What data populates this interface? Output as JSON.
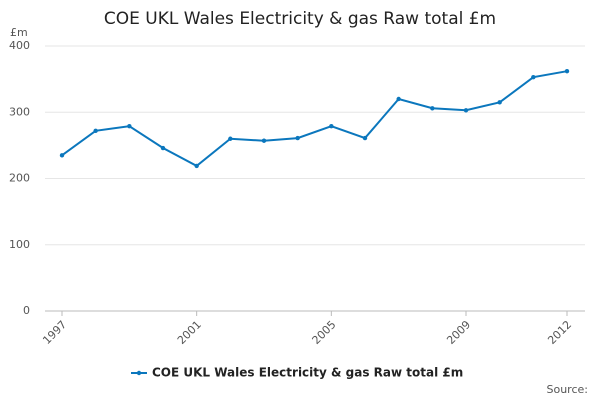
{
  "chart_data": {
    "type": "line",
    "title": "COE UKL Wales Electricity & gas Raw total £m",
    "y_unit": "£m",
    "source": "Source:",
    "x": [
      1997,
      1998,
      1999,
      2000,
      2001,
      2002,
      2003,
      2004,
      2005,
      2006,
      2007,
      2008,
      2009,
      2010,
      2011,
      2012
    ],
    "series": [
      {
        "name": "COE UKL Wales Electricity & gas Raw total £m",
        "color": "#0b77bd",
        "values": [
          235,
          272,
          279,
          246,
          219,
          260,
          257,
          261,
          279,
          261,
          320,
          306,
          303,
          315,
          353,
          362
        ]
      }
    ],
    "xlim": [
      1997,
      2012
    ],
    "xticks": [
      1997,
      2001,
      2005,
      2009,
      2012
    ],
    "ylim": [
      0,
      400
    ],
    "yticks": [
      0,
      100,
      200,
      300,
      400
    ],
    "grid": true,
    "legend": "bottom"
  }
}
